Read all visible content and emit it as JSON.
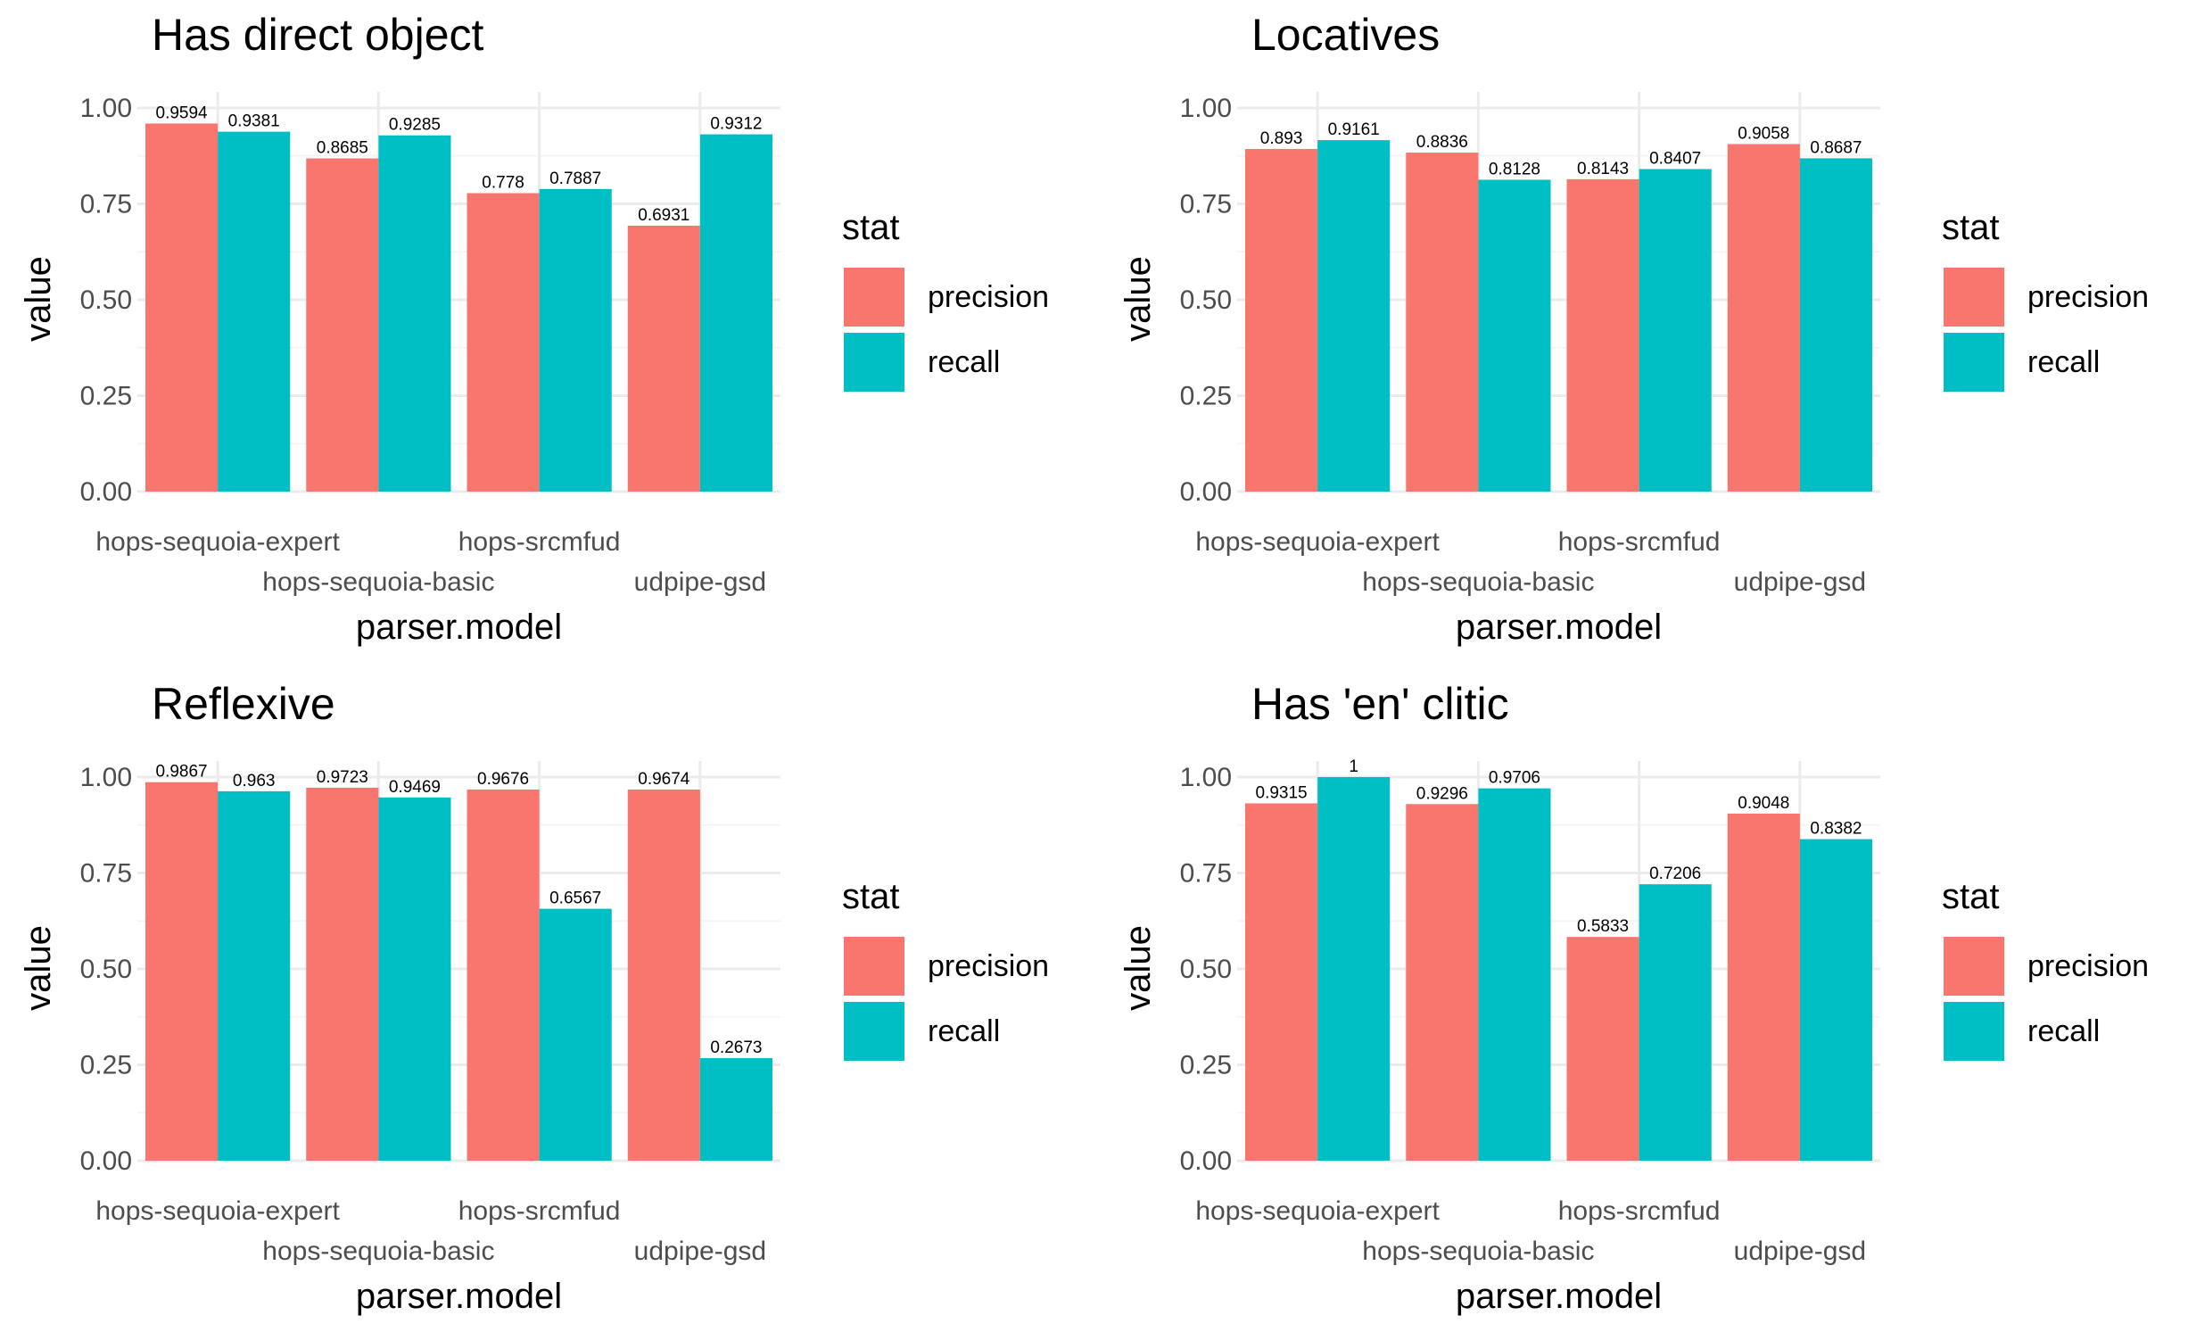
{
  "chart_data": [
    {
      "type": "bar",
      "title": "Has direct object",
      "xlabel": "parser.model",
      "ylabel": "value",
      "categories": [
        "hops-sequoia-expert",
        "hops-sequoia-basic",
        "hops-srcmfud",
        "udpipe-gsd"
      ],
      "series": [
        {
          "name": "precision",
          "values": [
            0.9594,
            0.8685,
            0.778,
            0.6931
          ],
          "labels": [
            "0.9594",
            "0.8685",
            "0.778",
            "0.6931"
          ]
        },
        {
          "name": "recall",
          "values": [
            0.9381,
            0.9285,
            0.7887,
            0.9312
          ],
          "labels": [
            "0.9381",
            "0.9285",
            "0.7887",
            "0.9312"
          ]
        }
      ],
      "yticks": [
        "0.00",
        "0.25",
        "0.50",
        "0.75",
        "1.00"
      ],
      "ylim": [
        0,
        1.05
      ],
      "legend_title": "stat",
      "legend_position": "right"
    },
    {
      "type": "bar",
      "title": "Locatives",
      "xlabel": "parser.model",
      "ylabel": "value",
      "categories": [
        "hops-sequoia-expert",
        "hops-sequoia-basic",
        "hops-srcmfud",
        "udpipe-gsd"
      ],
      "series": [
        {
          "name": "precision",
          "values": [
            0.893,
            0.8836,
            0.8143,
            0.9058
          ],
          "labels": [
            "0.893",
            "0.8836",
            "0.8143",
            "0.9058"
          ]
        },
        {
          "name": "recall",
          "values": [
            0.9161,
            0.8128,
            0.8407,
            0.8687
          ],
          "labels": [
            "0.9161",
            "0.8128",
            "0.8407",
            "0.8687"
          ]
        }
      ],
      "yticks": [
        "0.00",
        "0.25",
        "0.50",
        "0.75",
        "1.00"
      ],
      "ylim": [
        0,
        1.05
      ],
      "legend_title": "stat",
      "legend_position": "right"
    },
    {
      "type": "bar",
      "title": "Reflexive",
      "xlabel": "parser.model",
      "ylabel": "value",
      "categories": [
        "hops-sequoia-expert",
        "hops-sequoia-basic",
        "hops-srcmfud",
        "udpipe-gsd"
      ],
      "series": [
        {
          "name": "precision",
          "values": [
            0.9867,
            0.9723,
            0.9676,
            0.9674
          ],
          "labels": [
            "0.9867",
            "0.9723",
            "0.9676",
            "0.9674"
          ]
        },
        {
          "name": "recall",
          "values": [
            0.963,
            0.9469,
            0.6567,
            0.2673
          ],
          "labels": [
            "0.963",
            "0.9469",
            "0.6567",
            "0.2673"
          ]
        }
      ],
      "yticks": [
        "0.00",
        "0.25",
        "0.50",
        "0.75",
        "1.00"
      ],
      "ylim": [
        0,
        1.05
      ],
      "legend_title": "stat",
      "legend_position": "right"
    },
    {
      "type": "bar",
      "title": "Has 'en' clitic",
      "xlabel": "parser.model",
      "ylabel": "value",
      "categories": [
        "hops-sequoia-expert",
        "hops-sequoia-basic",
        "hops-srcmfud",
        "udpipe-gsd"
      ],
      "series": [
        {
          "name": "precision",
          "values": [
            0.9315,
            0.9296,
            0.5833,
            0.9048
          ],
          "labels": [
            "0.9315",
            "0.9296",
            "0.5833",
            "0.9048"
          ]
        },
        {
          "name": "recall",
          "values": [
            1,
            0.9706,
            0.7206,
            0.8382
          ],
          "labels": [
            "1",
            "0.9706",
            "0.7206",
            "0.8382"
          ]
        }
      ],
      "yticks": [
        "0.00",
        "0.25",
        "0.50",
        "0.75",
        "1.00"
      ],
      "ylim": [
        0,
        1.05
      ],
      "legend_title": "stat",
      "legend_position": "right"
    }
  ],
  "colors": {
    "precision": "#F8766D",
    "recall": "#00BFC4",
    "grid_major": "#EBEBEB",
    "grid_minor": "#F5F5F5",
    "axis_text": "#4D4D4D",
    "title_text": "#000000"
  }
}
